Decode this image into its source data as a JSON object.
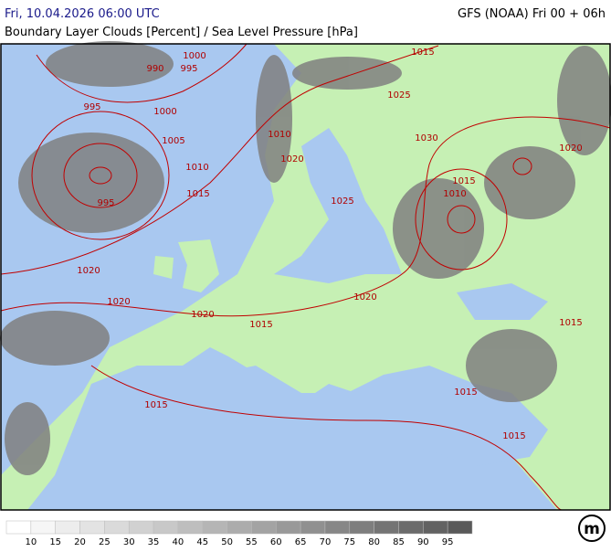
{
  "header": {
    "left": "Fri, 10.04.2026 06:00 UTC",
    "right": "GFS (NOAA) Fri 00 + 06h",
    "subtitle": "Boundary Layer Clouds [Percent] / Sea Level Pressure [hPa]"
  },
  "isobar_labels": [
    "1015",
    "1000",
    "990",
    "995",
    "1025",
    "995",
    "1000",
    "1030",
    "1020",
    "1005",
    "1010",
    "1020",
    "1010",
    "995",
    "1015",
    "1025",
    "1015",
    "1010",
    "1020",
    "1020",
    "1020",
    "1020",
    "1015",
    "1015",
    "1015",
    "1015",
    "1015"
  ],
  "colorbar": {
    "labels": [
      "10",
      "15",
      "20",
      "25",
      "30",
      "35",
      "40",
      "45",
      "50",
      "55",
      "60",
      "65",
      "70",
      "75",
      "80",
      "85",
      "90",
      "95"
    ],
    "colors": [
      "#ffffff",
      "#f6f6f6",
      "#ededed",
      "#e3e3e3",
      "#dadada",
      "#d1d1d1",
      "#c8c8c8",
      "#bebebe",
      "#b5b5b5",
      "#acacac",
      "#a3a3a3",
      "#999999",
      "#909090",
      "#878787",
      "#7e7e7e",
      "#747474",
      "#6b6b6b",
      "#626262",
      "#595959"
    ]
  },
  "logo": "m"
}
